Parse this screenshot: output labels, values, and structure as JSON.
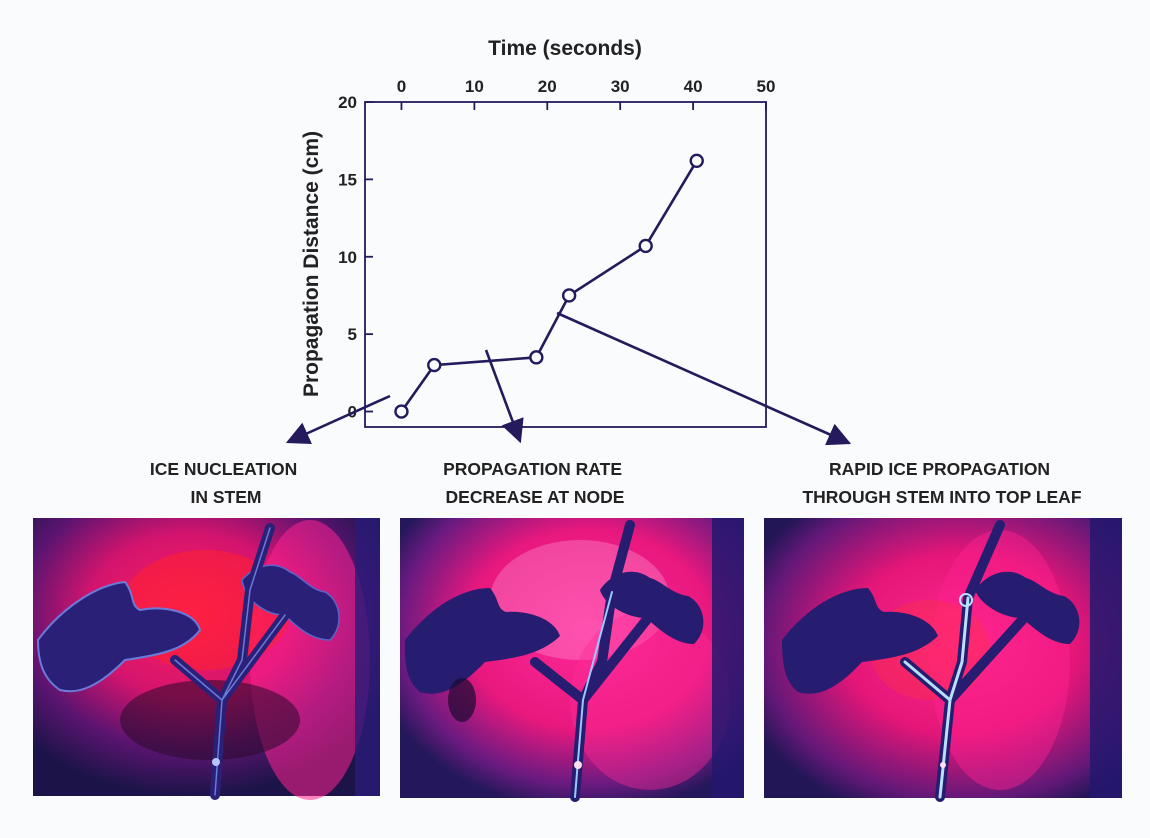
{
  "chart_data": {
    "type": "line",
    "xlabel": "Time (seconds)",
    "ylabel": "Propagation Distance (cm)",
    "xlim": [
      -5,
      50
    ],
    "ylim": [
      -1,
      20
    ],
    "x_ticks": [
      0,
      10,
      20,
      30,
      40,
      50
    ],
    "y_ticks": [
      0,
      5,
      10,
      15,
      20
    ],
    "x_axis_position": "top",
    "grid": false,
    "legend": "none",
    "series": [
      {
        "x": [
          0,
          4.5,
          18.5,
          23,
          33.5,
          40.5
        ],
        "y": [
          0,
          3,
          3.5,
          7.5,
          10.7,
          16.2
        ],
        "marker": "open-circle",
        "color": "#241a5c"
      }
    ],
    "annotations": [
      {
        "label": [
          "ICE NUCLEATION",
          "IN STEM"
        ]
      },
      {
        "label": [
          "PROPAGATION RATE",
          "DECREASE AT NODE"
        ]
      },
      {
        "label": [
          "RAPID ICE PROPAGATION",
          "THROUGH STEM INTO TOP LEAF"
        ]
      }
    ]
  },
  "panels": [
    {
      "image": "thermal-image-ice-nucleation"
    },
    {
      "image": "thermal-image-rate-decrease"
    },
    {
      "image": "thermal-image-rapid-propagation"
    }
  ]
}
